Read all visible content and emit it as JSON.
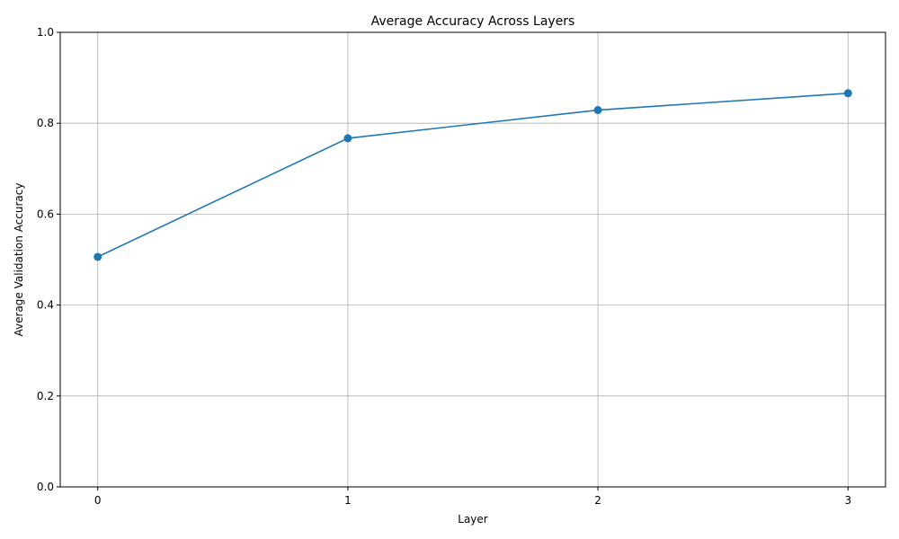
{
  "chart_data": {
    "type": "line",
    "title": "Average Accuracy Across Layers",
    "xlabel": "Layer",
    "ylabel": "Average Validation Accuracy",
    "x": [
      0,
      1,
      2,
      3
    ],
    "x_tick_labels": [
      "0",
      "1",
      "2",
      "3"
    ],
    "y_ticks": [
      0.0,
      0.2,
      0.4,
      0.6,
      0.8,
      1.0
    ],
    "y_tick_labels": [
      "0.0",
      "0.2",
      "0.4",
      "0.6",
      "0.8",
      "1.0"
    ],
    "ylim": [
      0,
      1
    ],
    "xlim": [
      -0.15,
      3.15
    ],
    "grid": true,
    "series": [
      {
        "values": [
          0.506,
          0.767,
          0.829,
          0.866
        ],
        "color": "#1f77b4",
        "marker": "circle"
      }
    ]
  }
}
